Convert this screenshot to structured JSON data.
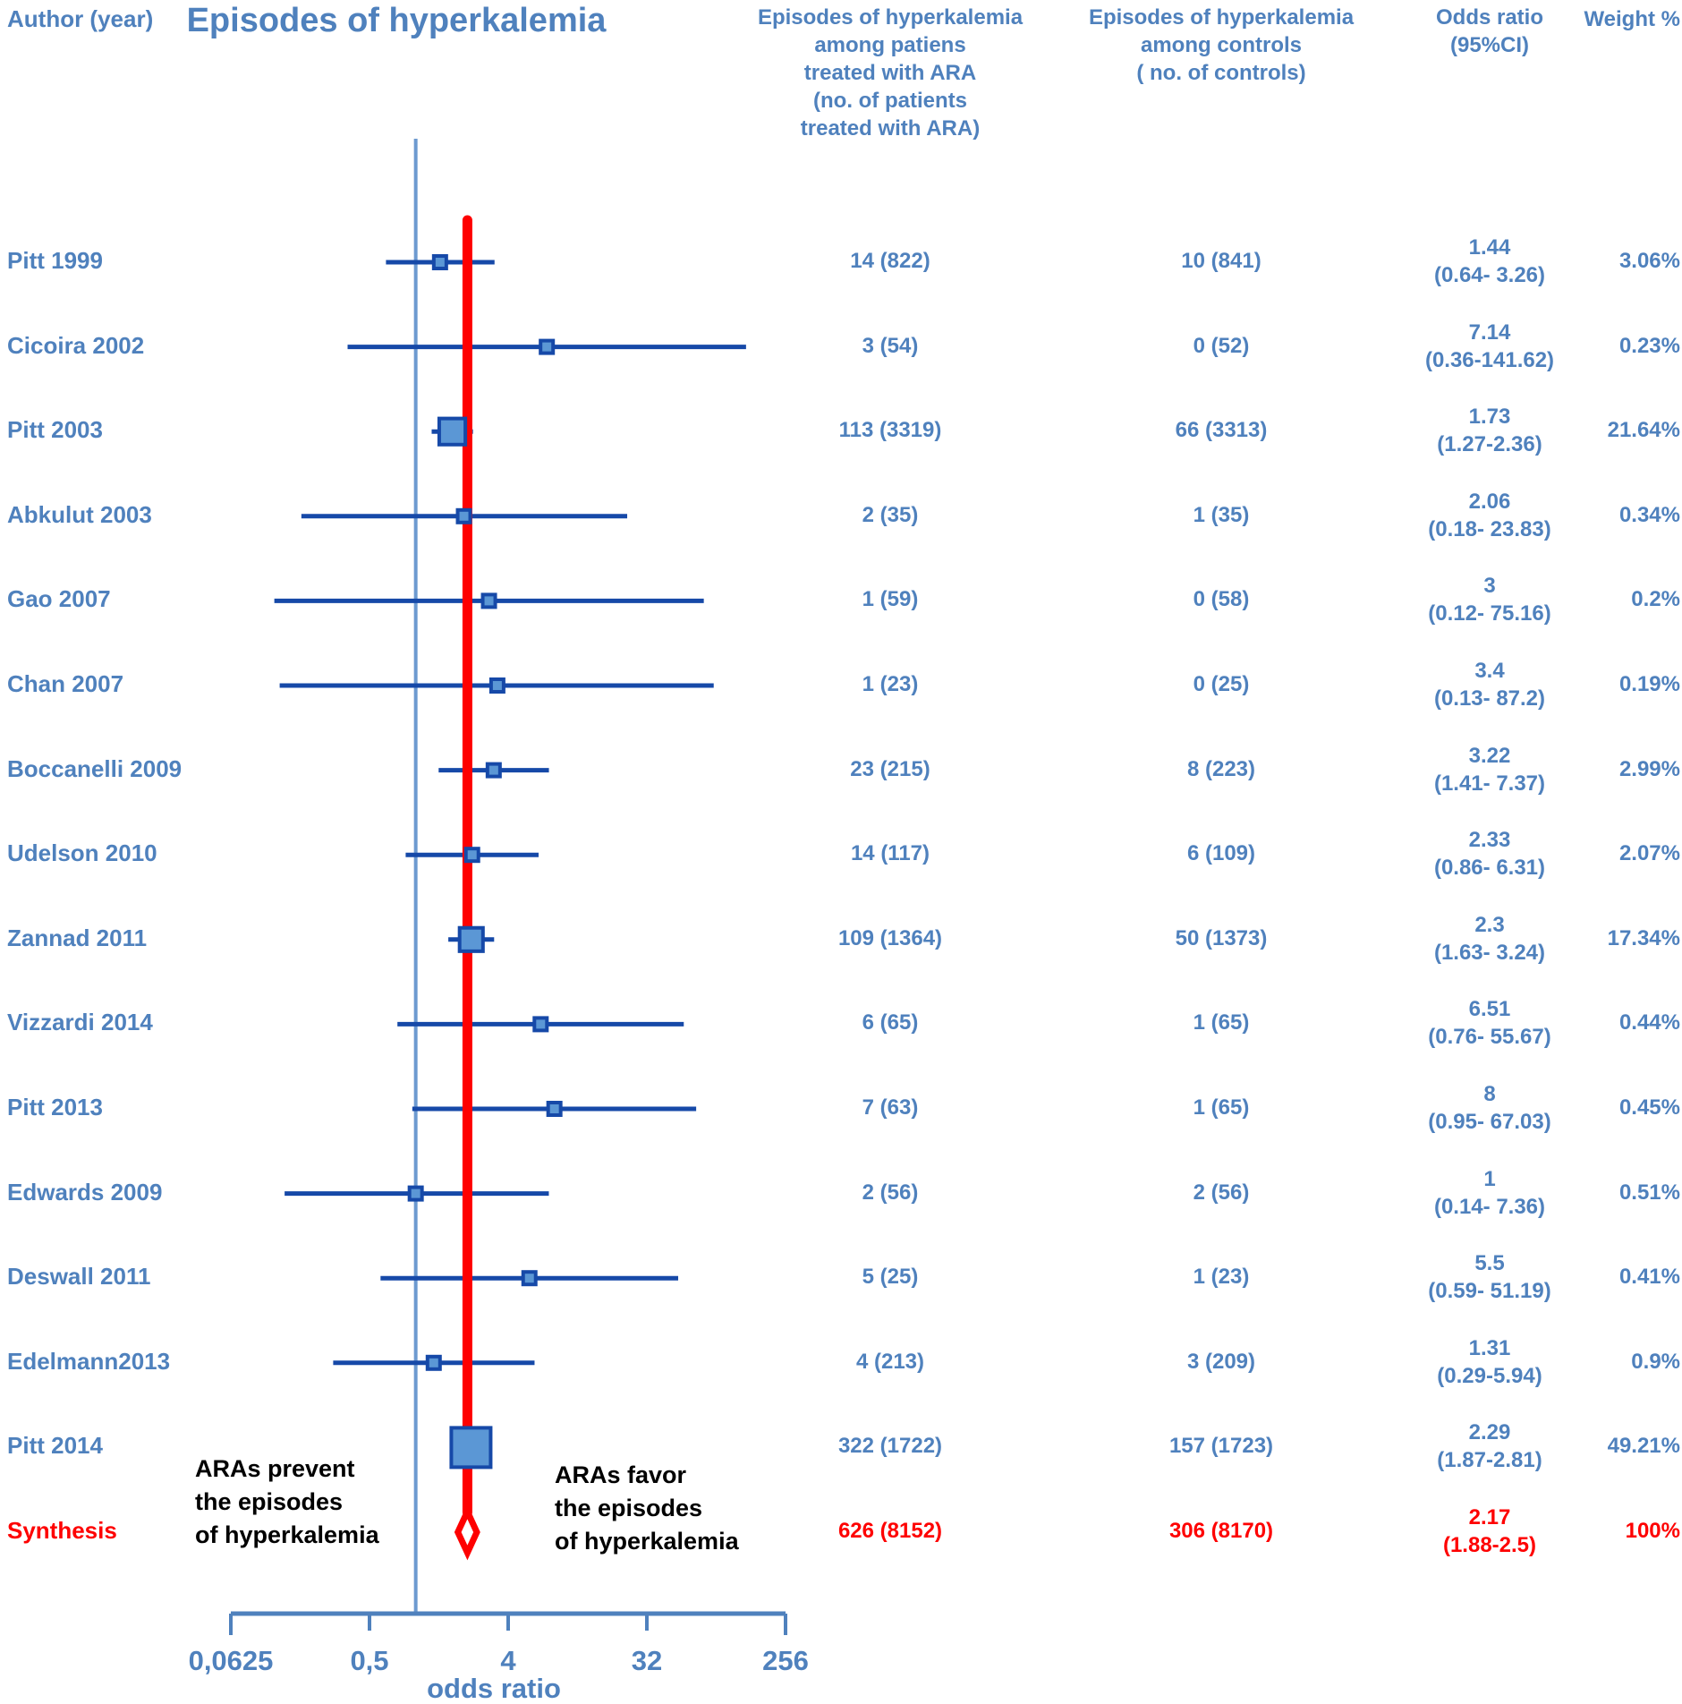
{
  "chart_data": {
    "type": "scatter",
    "subtype": "forest-plot-meta-analysis",
    "title": "Episodes of hyperkalemia",
    "columns": {
      "author": "Author (year)",
      "treated_lines": [
        "Episodes of hyperkalemia",
        "among patiens",
        "treated with  ARA",
        "(no. of patients",
        "treated with ARA)"
      ],
      "controls_lines": [
        "Episodes of hyperkalemia",
        "among controls",
        "( no. of controls)"
      ],
      "or_lines": [
        "Odds ratio",
        "(95%CI)"
      ],
      "weight": "Weight %"
    },
    "axis": {
      "label": "odds ratio",
      "scale": "log",
      "min": 0.0625,
      "max": 256,
      "ticks": [
        {
          "label": "0,0625",
          "value": 0.0625
        },
        {
          "label": "0,5",
          "value": 0.5
        },
        {
          "label": "4",
          "value": 4
        },
        {
          "label": "32",
          "value": 32
        },
        {
          "label": "256",
          "value": 256
        }
      ],
      "reference_value": 1,
      "pooled_line_value": 2.17
    },
    "annotations": {
      "left_lines": [
        "ARAs prevent",
        "the episodes",
        "of hyperkalemia"
      ],
      "right_lines": [
        "ARAs  favor",
        "the episodes",
        "of hyperkalemia"
      ]
    },
    "studies": [
      {
        "author": "Pitt 1999",
        "treated": "14 (822)",
        "controls": "10 (841)",
        "or_text": "1.44",
        "ci_text": "(0.64- 3.26)",
        "weight_text": "3.06%",
        "or": 1.44,
        "lo": 0.64,
        "hi": 3.26,
        "weight": 3.06
      },
      {
        "author": "Cicoira 2002",
        "treated": "3 (54)",
        "controls": "0 (52)",
        "or_text": "7.14",
        "ci_text": "(0.36-141.62)",
        "weight_text": "0.23%",
        "or": 7.14,
        "lo": 0.36,
        "hi": 141.62,
        "weight": 0.23
      },
      {
        "author": "Pitt 2003",
        "treated": "113 (3319)",
        "controls": "66 (3313)",
        "or_text": "1.73",
        "ci_text": "(1.27-2.36)",
        "weight_text": "21.64%",
        "or": 1.73,
        "lo": 1.27,
        "hi": 2.36,
        "weight": 21.64
      },
      {
        "author": "Abkulut 2003",
        "treated": "2 (35)",
        "controls": "1 (35)",
        "or_text": "2.06",
        "ci_text": "(0.18- 23.83)",
        "weight_text": "0.34%",
        "or": 2.06,
        "lo": 0.18,
        "hi": 23.83,
        "weight": 0.34
      },
      {
        "author": "Gao 2007",
        "treated": "1 (59)",
        "controls": "0 (58)",
        "or_text": "3",
        "ci_text": "(0.12- 75.16)",
        "weight_text": "0.2%",
        "or": 3,
        "lo": 0.12,
        "hi": 75.16,
        "weight": 0.2
      },
      {
        "author": "Chan 2007",
        "treated": "1 (23)",
        "controls": "0 (25)",
        "or_text": "3.4",
        "ci_text": "(0.13- 87.2)",
        "weight_text": "0.19%",
        "or": 3.4,
        "lo": 0.13,
        "hi": 87.2,
        "weight": 0.19
      },
      {
        "author": "Boccanelli 2009",
        "treated": "23 (215)",
        "controls": "8 (223)",
        "or_text": "3.22",
        "ci_text": "(1.41- 7.37)",
        "weight_text": "2.99%",
        "or": 3.22,
        "lo": 1.41,
        "hi": 7.37,
        "weight": 2.99
      },
      {
        "author": "Udelson 2010",
        "treated": "14 (117)",
        "controls": "6 (109)",
        "or_text": "2.33",
        "ci_text": "(0.86- 6.31)",
        "weight_text": "2.07%",
        "or": 2.33,
        "lo": 0.86,
        "hi": 6.31,
        "weight": 2.07
      },
      {
        "author": "Zannad 2011",
        "treated": "109 (1364)",
        "controls": "50 (1373)",
        "or_text": "2.3",
        "ci_text": "(1.63- 3.24)",
        "weight_text": "17.34%",
        "or": 2.3,
        "lo": 1.63,
        "hi": 3.24,
        "weight": 17.34
      },
      {
        "author": "Vizzardi 2014",
        "treated": "6 (65)",
        "controls": "1 (65)",
        "or_text": "6.51",
        "ci_text": "(0.76- 55.67)",
        "weight_text": "0.44%",
        "or": 6.51,
        "lo": 0.76,
        "hi": 55.67,
        "weight": 0.44
      },
      {
        "author": "Pitt 2013",
        "treated": "7 (63)",
        "controls": "1 (65)",
        "or_text": "8",
        "ci_text": "(0.95- 67.03)",
        "weight_text": "0.45%",
        "or": 8,
        "lo": 0.95,
        "hi": 67.03,
        "weight": 0.45
      },
      {
        "author": "Edwards 2009",
        "treated": "2 (56)",
        "controls": "2 (56)",
        "or_text": "1",
        "ci_text": "(0.14- 7.36)",
        "weight_text": "0.51%",
        "or": 1,
        "lo": 0.14,
        "hi": 7.36,
        "weight": 0.51
      },
      {
        "author": "Deswall 2011",
        "treated": "5 (25)",
        "controls": "1 (23)",
        "or_text": "5.5",
        "ci_text": "(0.59- 51.19)",
        "weight_text": "0.41%",
        "or": 5.5,
        "lo": 0.59,
        "hi": 51.19,
        "weight": 0.41
      },
      {
        "author": "Edelmann2013",
        "treated": "4 (213)",
        "controls": "3 (209)",
        "or_text": "1.31",
        "ci_text": "(0.29-5.94)",
        "weight_text": "0.9%",
        "or": 1.31,
        "lo": 0.29,
        "hi": 5.94,
        "weight": 0.9
      },
      {
        "author": "Pitt 2014",
        "treated": "322 (1722)",
        "controls": "157 (1723)",
        "or_text": "2.29",
        "ci_text": "(1.87-2.81)",
        "weight_text": "49.21%",
        "or": 2.29,
        "lo": 1.87,
        "hi": 2.81,
        "weight": 49.21
      }
    ],
    "synthesis": {
      "author": "Synthesis",
      "treated": "626 (8152)",
      "controls": "306 (8170)",
      "or_text": "2.17",
      "ci_text": "(1.88-2.5)",
      "weight_text": "100%",
      "or": 2.17,
      "lo": 1.88,
      "hi": 2.5,
      "weight": 100
    },
    "colors": {
      "text_blue": "#4f81bd",
      "axis_blue": "#4f81bd",
      "reference_line": "#6d9ad0",
      "ci_line": "#1649a8",
      "marker_fill": "#5b97d5",
      "marker_border": "#1649a8",
      "synthesis_red": "#fe0000",
      "annotation_black": "#000000"
    }
  }
}
